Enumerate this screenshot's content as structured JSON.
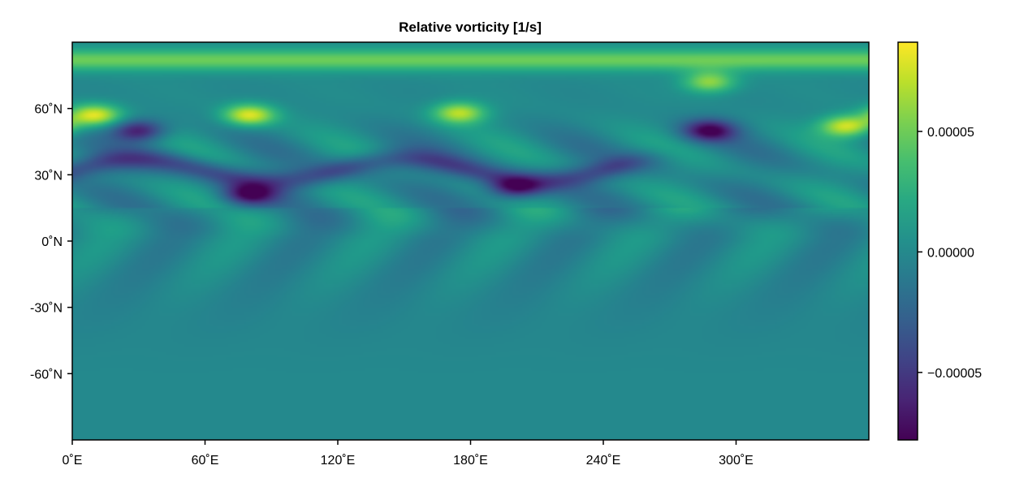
{
  "chart_data": {
    "type": "heatmap",
    "title": "Relative vorticity [1/s]",
    "xlabel": "",
    "ylabel": "",
    "x_range_deg": [
      0,
      360
    ],
    "y_range_deg": [
      -90,
      90
    ],
    "x_ticks": [
      {
        "value": 0,
        "label": "0˚E"
      },
      {
        "value": 60,
        "label": "60˚E"
      },
      {
        "value": 120,
        "label": "120˚E"
      },
      {
        "value": 180,
        "label": "180˚E"
      },
      {
        "value": 240,
        "label": "240˚E"
      },
      {
        "value": 300,
        "label": "300˚E"
      }
    ],
    "y_ticks": [
      {
        "value": 60,
        "label": "60˚N"
      },
      {
        "value": 30,
        "label": "30˚N"
      },
      {
        "value": 0,
        "label": "0˚N"
      },
      {
        "value": -30,
        "label": "-30˚N"
      },
      {
        "value": -60,
        "label": "-60˚N"
      }
    ],
    "colormap": "viridis",
    "colorbar": {
      "range": [
        -7.8e-05,
        8.7e-05
      ],
      "ticks": [
        {
          "value": 5e-05,
          "label": "0.00005"
        },
        {
          "value": 0.0,
          "label": "0.00000"
        },
        {
          "value": -5e-05,
          "label": "−0.00005"
        }
      ]
    },
    "features": [
      {
        "kind": "positive-band",
        "description": "zonal jet near northern edge",
        "lon": [
          0,
          360
        ],
        "lat": 82,
        "value": 5e-05
      },
      {
        "kind": "positive-max",
        "lon": 80,
        "lat": 57,
        "value": 8e-05
      },
      {
        "kind": "positive-max",
        "lon": 175,
        "lat": 58,
        "value": 7e-05
      },
      {
        "kind": "positive-max",
        "lon": 10,
        "lat": 57,
        "value": 8e-05
      },
      {
        "kind": "positive-max",
        "lon": 350,
        "lat": 52,
        "value": 8e-05
      },
      {
        "kind": "positive-max",
        "lon": 288,
        "lat": 72,
        "value": 6e-05
      },
      {
        "kind": "negative-min",
        "lon": 30,
        "lat": 50,
        "value": -7e-05
      },
      {
        "kind": "negative-min",
        "lon": 80,
        "lat": 21,
        "value": -7e-05
      },
      {
        "kind": "negative-min",
        "lon": 200,
        "lat": 24,
        "value": -7e-05
      },
      {
        "kind": "negative-min",
        "lon": 288,
        "lat": 50,
        "value": -7.5e-05
      },
      {
        "kind": "negative-band",
        "description": "wavy trough band",
        "lon": [
          0,
          240
        ],
        "lat": 32,
        "value": -4e-05
      }
    ]
  }
}
